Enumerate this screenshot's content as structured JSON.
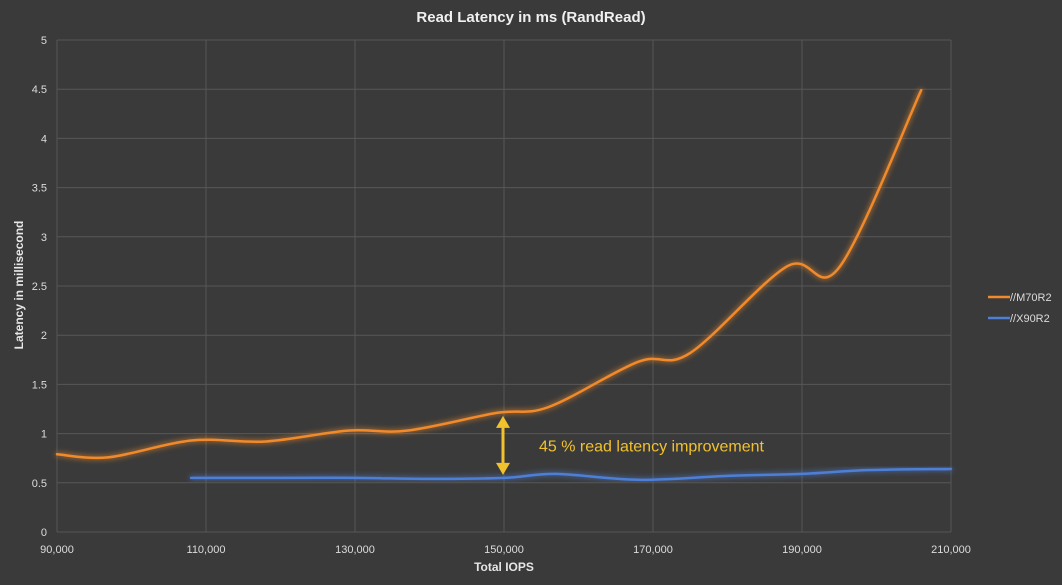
{
  "chart_data": {
    "type": "line",
    "title": "Read Latency in ms (RandRead)",
    "xlabel": "Total IOPS",
    "ylabel": "Latency in millisecond",
    "xlim": [
      90000,
      210000
    ],
    "ylim": [
      0,
      5
    ],
    "xticks": [
      90000,
      110000,
      130000,
      150000,
      170000,
      190000,
      210000
    ],
    "xtick_labels": [
      "90,000",
      "110,000",
      "130,000",
      "150,000",
      "170,000",
      "190,000",
      "210,000"
    ],
    "yticks": [
      0,
      0.5,
      1,
      1.5,
      2,
      2.5,
      3,
      3.5,
      4,
      4.5,
      5
    ],
    "ytick_labels": [
      "0",
      "0.5",
      "1",
      "1.5",
      "2",
      "2.5",
      "3",
      "3.5",
      "4",
      "4.5",
      "5"
    ],
    "grid": true,
    "legend_position": "right",
    "series": [
      {
        "name": "//M70R2",
        "color": "#f08a2c",
        "points": [
          [
            90000,
            0.79
          ],
          [
            97000,
            0.76
          ],
          [
            108000,
            0.93
          ],
          [
            118000,
            0.92
          ],
          [
            129000,
            1.03
          ],
          [
            137000,
            1.03
          ],
          [
            149000,
            1.21
          ],
          [
            156000,
            1.27
          ],
          [
            168000,
            1.73
          ],
          [
            175000,
            1.82
          ],
          [
            188000,
            2.7
          ],
          [
            195000,
            2.69
          ],
          [
            206000,
            4.49
          ]
        ]
      },
      {
        "name": "//X90R2",
        "color": "#4d7fd6",
        "points": [
          [
            108000,
            0.55
          ],
          [
            120000,
            0.55
          ],
          [
            130000,
            0.55
          ],
          [
            140000,
            0.54
          ],
          [
            150000,
            0.55
          ],
          [
            157000,
            0.59
          ],
          [
            168000,
            0.53
          ],
          [
            180000,
            0.57
          ],
          [
            190000,
            0.59
          ],
          [
            199000,
            0.63
          ],
          [
            210000,
            0.64
          ]
        ]
      }
    ],
    "annotation": {
      "text": "45 % read latency improvement",
      "x": 150000,
      "y_from": 0.58,
      "y_to": 1.18,
      "color": "#f2c12e"
    }
  }
}
